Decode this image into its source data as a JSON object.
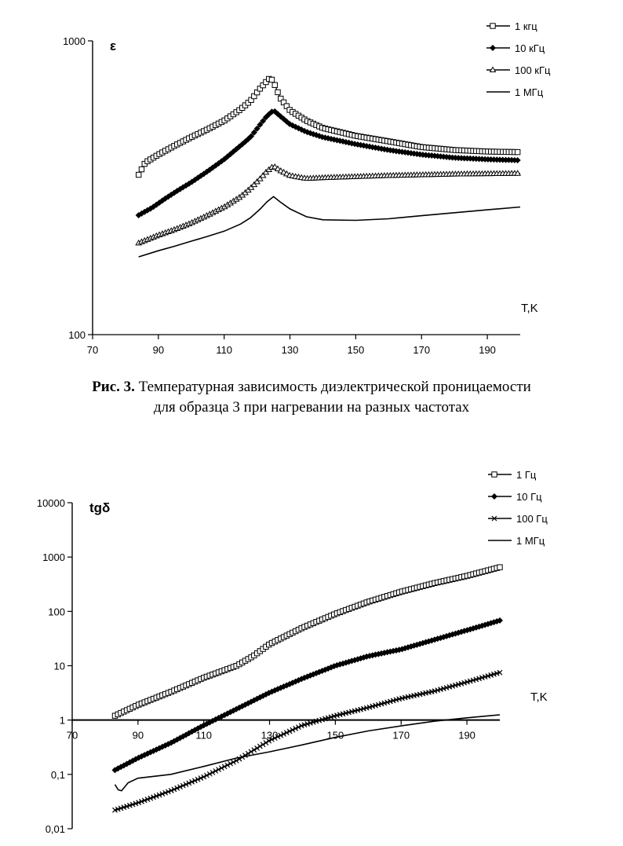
{
  "chart_data": [
    {
      "type": "line",
      "yscale": "log",
      "ylabel": "ε",
      "xlabel": "T,K",
      "xlim": [
        70,
        200
      ],
      "ylim": [
        100,
        1000
      ],
      "xticks": [
        70,
        90,
        110,
        130,
        150,
        170,
        190
      ],
      "yticks": [
        100,
        1000
      ],
      "ytick_labels": [
        "100",
        "1000"
      ],
      "legend_position": "top-right",
      "series": [
        {
          "name": "1 кгц",
          "marker": "square-open",
          "x": [
            84,
            86,
            90,
            95,
            100,
            105,
            110,
            115,
            118,
            121,
            123,
            124,
            125,
            127,
            130,
            135,
            140,
            150,
            160,
            170,
            180,
            190,
            200
          ],
          "y": [
            350,
            385,
            410,
            440,
            470,
            500,
            535,
            585,
            625,
            690,
            730,
            750,
            725,
            640,
            580,
            535,
            505,
            475,
            455,
            435,
            425,
            420,
            418
          ]
        },
        {
          "name": "10 кГц",
          "marker": "diamond-filled",
          "x": [
            84,
            88,
            92,
            96,
            100,
            105,
            110,
            115,
            118,
            121,
            123,
            125,
            127,
            130,
            135,
            140,
            150,
            160,
            170,
            180,
            190,
            200
          ],
          "y": [
            255,
            270,
            290,
            310,
            330,
            360,
            395,
            440,
            470,
            520,
            555,
            580,
            555,
            520,
            490,
            470,
            445,
            425,
            410,
            400,
            395,
            392
          ]
        },
        {
          "name": "100 кГц",
          "marker": "triangle-open",
          "x": [
            84,
            90,
            95,
            100,
            105,
            110,
            115,
            118,
            121,
            123,
            125,
            127,
            130,
            135,
            140,
            150,
            160,
            170,
            180,
            190,
            200
          ],
          "y": [
            205,
            218,
            228,
            240,
            255,
            272,
            295,
            315,
            340,
            360,
            375,
            362,
            348,
            340,
            342,
            345,
            348,
            350,
            352,
            353,
            354
          ]
        },
        {
          "name": "1 МГц",
          "marker": "none",
          "x": [
            84,
            90,
            95,
            100,
            105,
            110,
            115,
            118,
            121,
            123,
            125,
            127,
            130,
            135,
            140,
            150,
            160,
            170,
            180,
            190,
            200
          ],
          "y": [
            184,
            193,
            200,
            208,
            216,
            225,
            238,
            250,
            268,
            283,
            295,
            283,
            268,
            252,
            246,
            245,
            248,
            254,
            260,
            266,
            272
          ]
        }
      ]
    },
    {
      "type": "line",
      "yscale": "log",
      "ylabel": "tgδ",
      "xlabel": "T,K",
      "xlim": [
        70,
        200
      ],
      "ylim": [
        0.01,
        10000
      ],
      "xticks": [
        70,
        90,
        110,
        130,
        150,
        170,
        190
      ],
      "yticks": [
        0.01,
        0.1,
        1,
        10,
        100,
        1000,
        10000
      ],
      "ytick_labels": [
        "0,01",
        "0,1",
        "1",
        "10",
        "100",
        "1000",
        "10000"
      ],
      "legend_position": "top-right",
      "series": [
        {
          "name": "1 Гц",
          "marker": "square-open",
          "x": [
            83,
            90,
            100,
            110,
            120,
            125,
            130,
            140,
            150,
            160,
            170,
            180,
            190,
            200
          ],
          "y": [
            1.2,
            1.9,
            3.3,
            6.0,
            10,
            15,
            25,
            50,
            90,
            150,
            230,
            330,
            450,
            650
          ]
        },
        {
          "name": "10 Гц",
          "marker": "diamond-filled",
          "x": [
            83,
            90,
            100,
            110,
            120,
            130,
            140,
            150,
            160,
            170,
            180,
            190,
            200
          ],
          "y": [
            0.12,
            0.2,
            0.38,
            0.8,
            1.6,
            3.2,
            5.8,
            10,
            15,
            20,
            30,
            45,
            68
          ]
        },
        {
          "name": "100 Гц",
          "marker": "x",
          "x": [
            83,
            90,
            100,
            110,
            120,
            130,
            140,
            150,
            160,
            170,
            180,
            190,
            200
          ],
          "y": [
            0.022,
            0.03,
            0.05,
            0.09,
            0.18,
            0.42,
            0.8,
            1.2,
            1.7,
            2.5,
            3.4,
            5,
            7.5
          ]
        },
        {
          "name": "1 МГц",
          "marker": "none",
          "x": [
            83,
            84,
            85,
            87,
            90,
            100,
            110,
            120,
            130,
            140,
            150,
            160,
            170,
            180,
            190,
            200
          ],
          "y": [
            0.065,
            0.052,
            0.05,
            0.07,
            0.085,
            0.1,
            0.14,
            0.2,
            0.26,
            0.35,
            0.48,
            0.63,
            0.78,
            0.95,
            1.1,
            1.25
          ]
        }
      ]
    }
  ],
  "caption": {
    "label": "Рис. 3.",
    "line1": " Температурная зависимость диэлектрической проницаемости",
    "line2": "для образца 3 при нагревании на разных частотах"
  }
}
